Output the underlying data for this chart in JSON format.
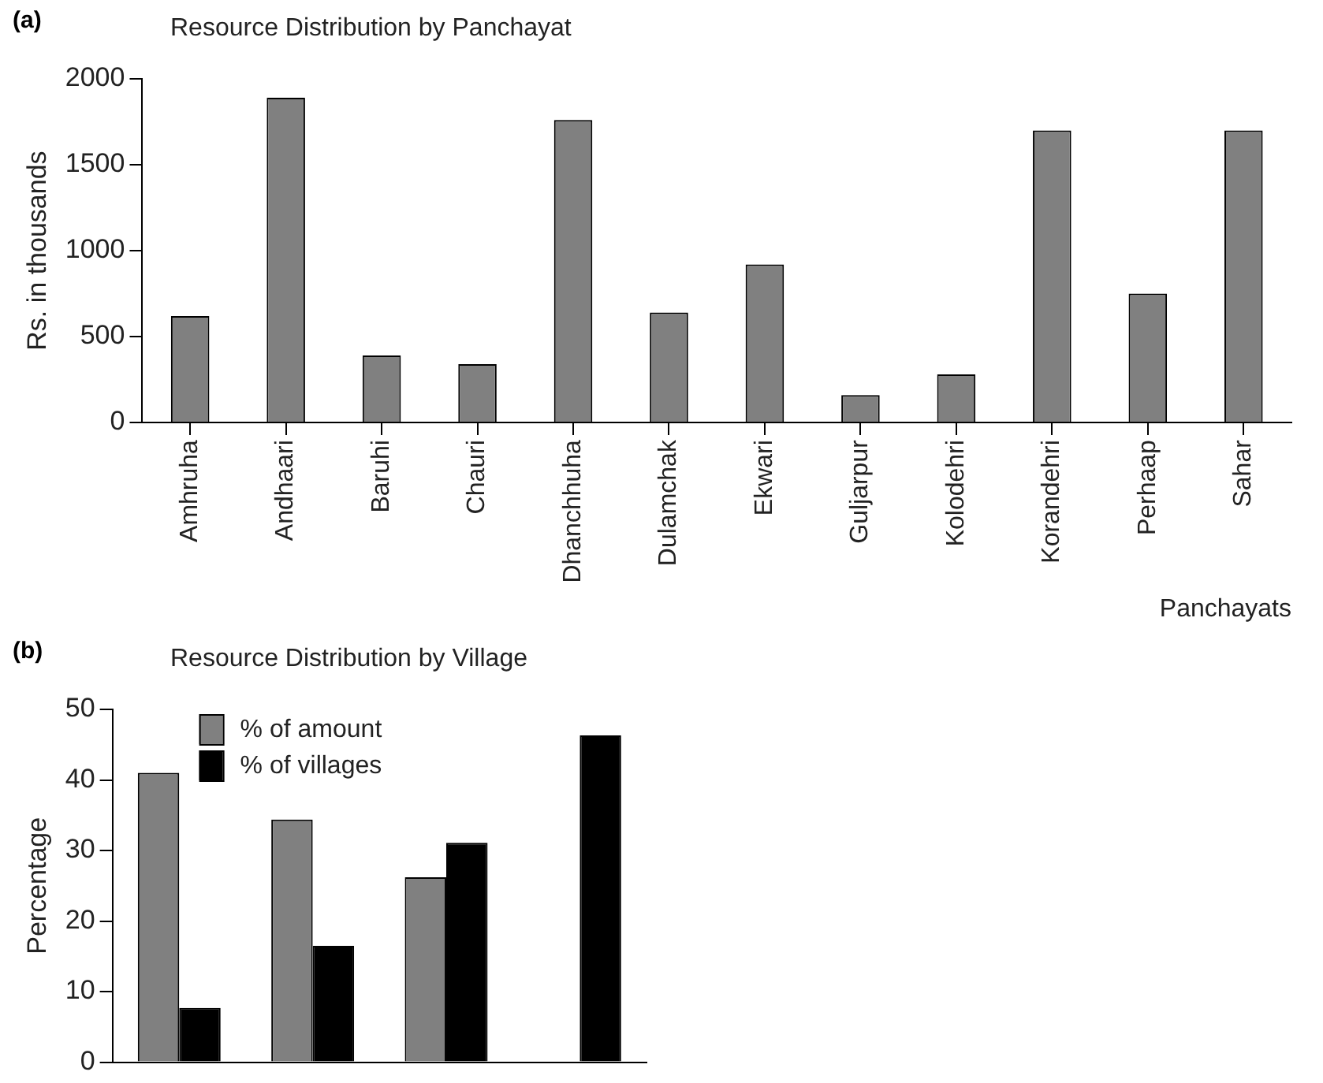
{
  "chart_data": [
    {
      "type": "bar",
      "title": "Resource Distribution by Panchayat",
      "xlabel": "Panchayats",
      "ylabel": "Rs. in thousands",
      "annotations": [
        "(a)"
      ],
      "categories": [
        "Amhruha",
        "Andhaari",
        "Baruhi",
        "Chauri",
        "Dhanchhuha",
        "Dulamchak",
        "Ekwari",
        "Guljarpur",
        "Kolodehri",
        "Korandehri",
        "Perhaap",
        "Sahar"
      ],
      "values": [
        620,
        1890,
        390,
        340,
        1760,
        640,
        920,
        160,
        280,
        1700,
        750,
        1700
      ],
      "color": "#808080",
      "ylim": [
        0,
        2000
      ],
      "yticks": [
        0,
        500,
        1000,
        1500,
        2000
      ],
      "grid": false
    },
    {
      "type": "bar",
      "title": "Resource Distribution by Village",
      "ylabel": "Percentage",
      "annotations": [
        "(b)"
      ],
      "categories": [
        null,
        null,
        null,
        null
      ],
      "series": [
        {
          "name": "% of amount",
          "color": "#808080",
          "values": [
            41,
            34.4,
            26.2,
            null
          ]
        },
        {
          "name": "% of villages",
          "color": "#000000",
          "values": [
            7.7,
            16.5,
            31.1,
            46.3
          ]
        }
      ],
      "ylim": [
        0,
        50
      ],
      "yticks": [
        0,
        10,
        20,
        30,
        40,
        50
      ],
      "grid": false,
      "legend": "top left",
      "tick_labels": "y"
    }
  ]
}
